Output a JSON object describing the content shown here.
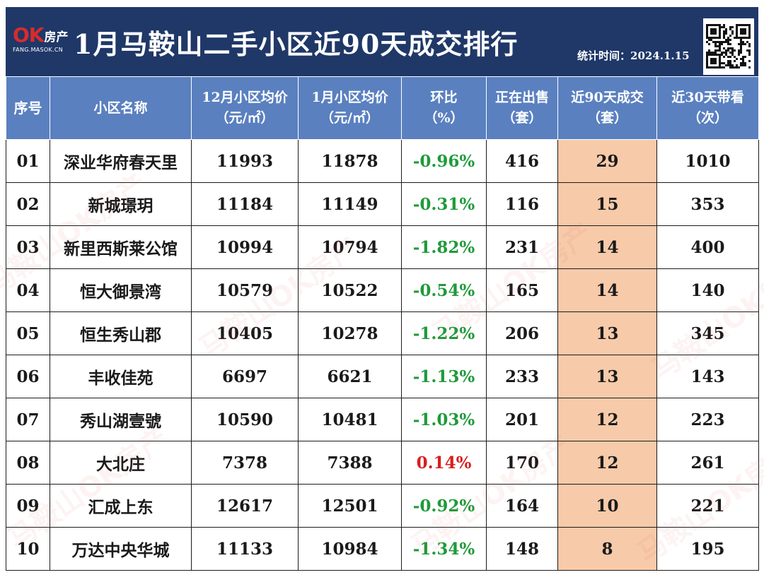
{
  "header": {
    "logo_mark": "OK",
    "logo_brand": "房产",
    "logo_url": "FANG.MASOK.CN",
    "title": "1月马鞍山二手小区近90天成交排行",
    "stat_date": "统计时间：2024.1.15",
    "qr_icon": "qr-code-icon"
  },
  "table": {
    "headers": {
      "seq": "序号",
      "name": "小区名称",
      "dec_price": [
        "12月小区均价",
        "（元/㎡）"
      ],
      "jan_price": [
        "1月小区均价",
        "（元/㎡）"
      ],
      "change": [
        "环比",
        "（%）"
      ],
      "on_sale": [
        "正在出售",
        "（套）"
      ],
      "deals_90": [
        "近90天成交",
        "（套）"
      ],
      "views_30": [
        "近30天带看",
        "（次）"
      ]
    },
    "rows": [
      {
        "seq": "01",
        "name": "深业华府春天里",
        "dec_price": "11993",
        "jan_price": "11878",
        "change": "-0.96%",
        "on_sale": "416",
        "deals_90": "29",
        "views_30": "1010"
      },
      {
        "seq": "02",
        "name": "新城璟玥",
        "dec_price": "11184",
        "jan_price": "11149",
        "change": "-0.31%",
        "on_sale": "116",
        "deals_90": "15",
        "views_30": "353"
      },
      {
        "seq": "03",
        "name": "新里西斯莱公馆",
        "dec_price": "10994",
        "jan_price": "10794",
        "change": "-1.82%",
        "on_sale": "231",
        "deals_90": "14",
        "views_30": "400"
      },
      {
        "seq": "04",
        "name": "恒大御景湾",
        "dec_price": "10579",
        "jan_price": "10522",
        "change": "-0.54%",
        "on_sale": "165",
        "deals_90": "14",
        "views_30": "140"
      },
      {
        "seq": "05",
        "name": "恒生秀山郡",
        "dec_price": "10405",
        "jan_price": "10278",
        "change": "-1.22%",
        "on_sale": "206",
        "deals_90": "13",
        "views_30": "345"
      },
      {
        "seq": "06",
        "name": "丰收佳苑",
        "dec_price": "6697",
        "jan_price": "6621",
        "change": "-1.13%",
        "on_sale": "233",
        "deals_90": "13",
        "views_30": "143"
      },
      {
        "seq": "07",
        "name": "秀山湖壹號",
        "dec_price": "10590",
        "jan_price": "10481",
        "change": "-1.03%",
        "on_sale": "201",
        "deals_90": "12",
        "views_30": "223"
      },
      {
        "seq": "08",
        "name": "大北庄",
        "dec_price": "7378",
        "jan_price": "7388",
        "change": "0.14%",
        "on_sale": "170",
        "deals_90": "12",
        "views_30": "261"
      },
      {
        "seq": "09",
        "name": "汇成上东",
        "dec_price": "12617",
        "jan_price": "12501",
        "change": "-0.92%",
        "on_sale": "164",
        "deals_90": "10",
        "views_30": "221"
      },
      {
        "seq": "10",
        "name": "万达中央华城",
        "dec_price": "11133",
        "jan_price": "10984",
        "change": "-1.34%",
        "on_sale": "148",
        "deals_90": "8",
        "views_30": "195"
      }
    ]
  },
  "watermark": {
    "text": "马鞍山OK房产"
  },
  "colors": {
    "header_bg": "#1f3868",
    "table_header_bg": "#5a80c0",
    "price_red": "#b11d1d",
    "change_green": "#1f9a3a",
    "change_red": "#d81e1e",
    "deal_highlight": "#f7caa9",
    "logo_red": "#d92b2b"
  }
}
